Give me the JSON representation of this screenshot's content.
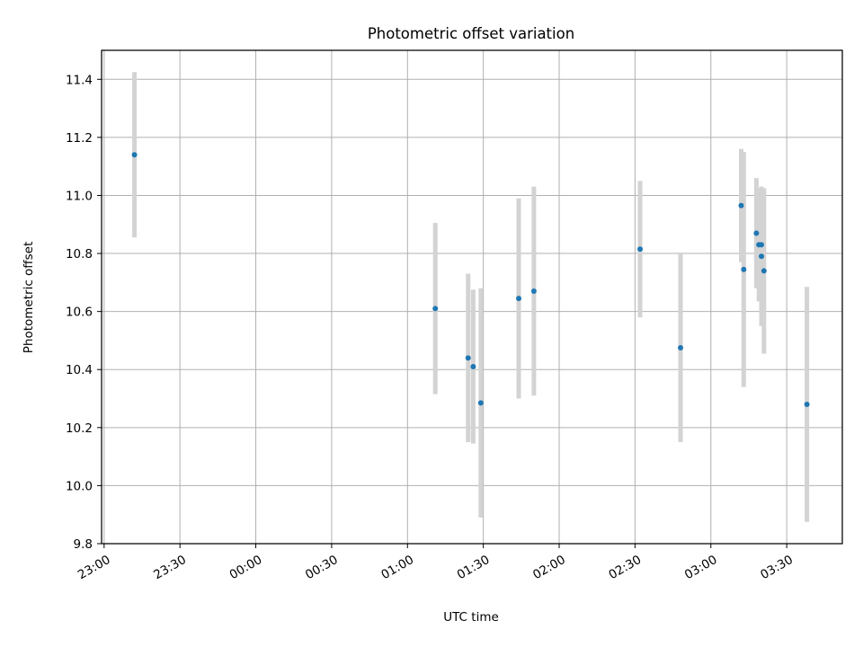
{
  "chart_data": {
    "type": "scatter",
    "title": "Photometric offset variation",
    "xlabel": "UTC time",
    "ylabel": "Photometric offset",
    "x_tick_labels": [
      "23:00",
      "23:30",
      "00:00",
      "00:30",
      "01:00",
      "01:30",
      "02:00",
      "02:30",
      "03:00",
      "03:30"
    ],
    "x_ticks_minutes": [
      0,
      30,
      60,
      90,
      120,
      150,
      180,
      210,
      240,
      270
    ],
    "xlim_minutes": [
      -1,
      292
    ],
    "y_ticks": [
      9.8,
      10.0,
      10.2,
      10.4,
      10.6,
      10.8,
      11.0,
      11.2,
      11.4
    ],
    "ylim": [
      9.8,
      11.5
    ],
    "grid": true,
    "colors": {
      "point": "#1f77b4",
      "errorbar": "#d3d3d3",
      "grid": "#b0b0b0"
    },
    "points": [
      {
        "time": "23:12",
        "y": 11.14,
        "yerr": 0.285
      },
      {
        "time": "01:11",
        "y": 10.61,
        "yerr": 0.295
      },
      {
        "time": "01:24",
        "y": 10.44,
        "yerr": 0.29
      },
      {
        "time": "01:26",
        "y": 10.41,
        "yerr": 0.265
      },
      {
        "time": "01:29",
        "y": 10.285,
        "yerr": 0.395
      },
      {
        "time": "01:44",
        "y": 10.645,
        "yerr": 0.345
      },
      {
        "time": "01:50",
        "y": 10.67,
        "yerr": 0.36
      },
      {
        "time": "02:32",
        "y": 10.815,
        "yerr": 0.235
      },
      {
        "time": "02:48",
        "y": 10.475,
        "yerr": 0.325
      },
      {
        "time": "03:12",
        "y": 10.965,
        "yerr": 0.195
      },
      {
        "time": "03:13",
        "y": 10.745,
        "yerr": 0.405
      },
      {
        "time": "03:18",
        "y": 10.87,
        "yerr": 0.19
      },
      {
        "time": "03:19",
        "y": 10.83,
        "yerr": 0.195
      },
      {
        "time": "03:20",
        "y": 10.83,
        "yerr": 0.2
      },
      {
        "time": "03:20",
        "y": 10.79,
        "yerr": 0.24
      },
      {
        "time": "03:21",
        "y": 10.74,
        "yerr": 0.285
      },
      {
        "time": "03:38",
        "y": 10.28,
        "yerr": 0.405
      }
    ]
  }
}
